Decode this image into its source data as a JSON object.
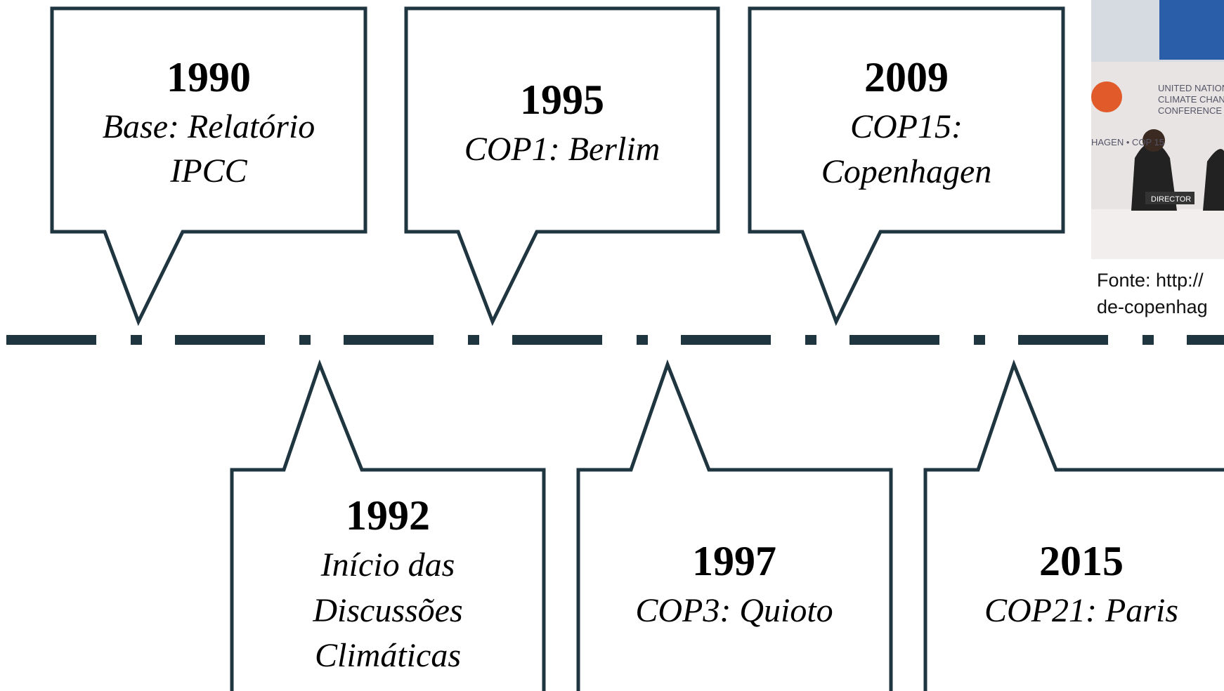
{
  "events": [
    {
      "year": "1990",
      "lines": [
        "Base: Relatório",
        "IPCC"
      ]
    },
    {
      "year": "1995",
      "lines": [
        "COP1: Berlim"
      ]
    },
    {
      "year": "2009",
      "lines": [
        "COP15:",
        "Copenhagen"
      ]
    },
    {
      "year": "1992",
      "lines": [
        "Início das",
        "Discussões",
        "Climáticas"
      ]
    },
    {
      "year": "1997",
      "lines": [
        "COP3: Quioto"
      ]
    },
    {
      "year": "2015",
      "lines": [
        "COP21: Paris"
      ]
    }
  ],
  "photo": {
    "texts": [
      "UNITED NATION",
      "CLIMATE CHAN",
      "CONFERENCE",
      "HAGEN • COP 15",
      "DIRECTOR"
    ],
    "caption": [
      "Fonte: http://",
      "de-copenhag"
    ]
  }
}
